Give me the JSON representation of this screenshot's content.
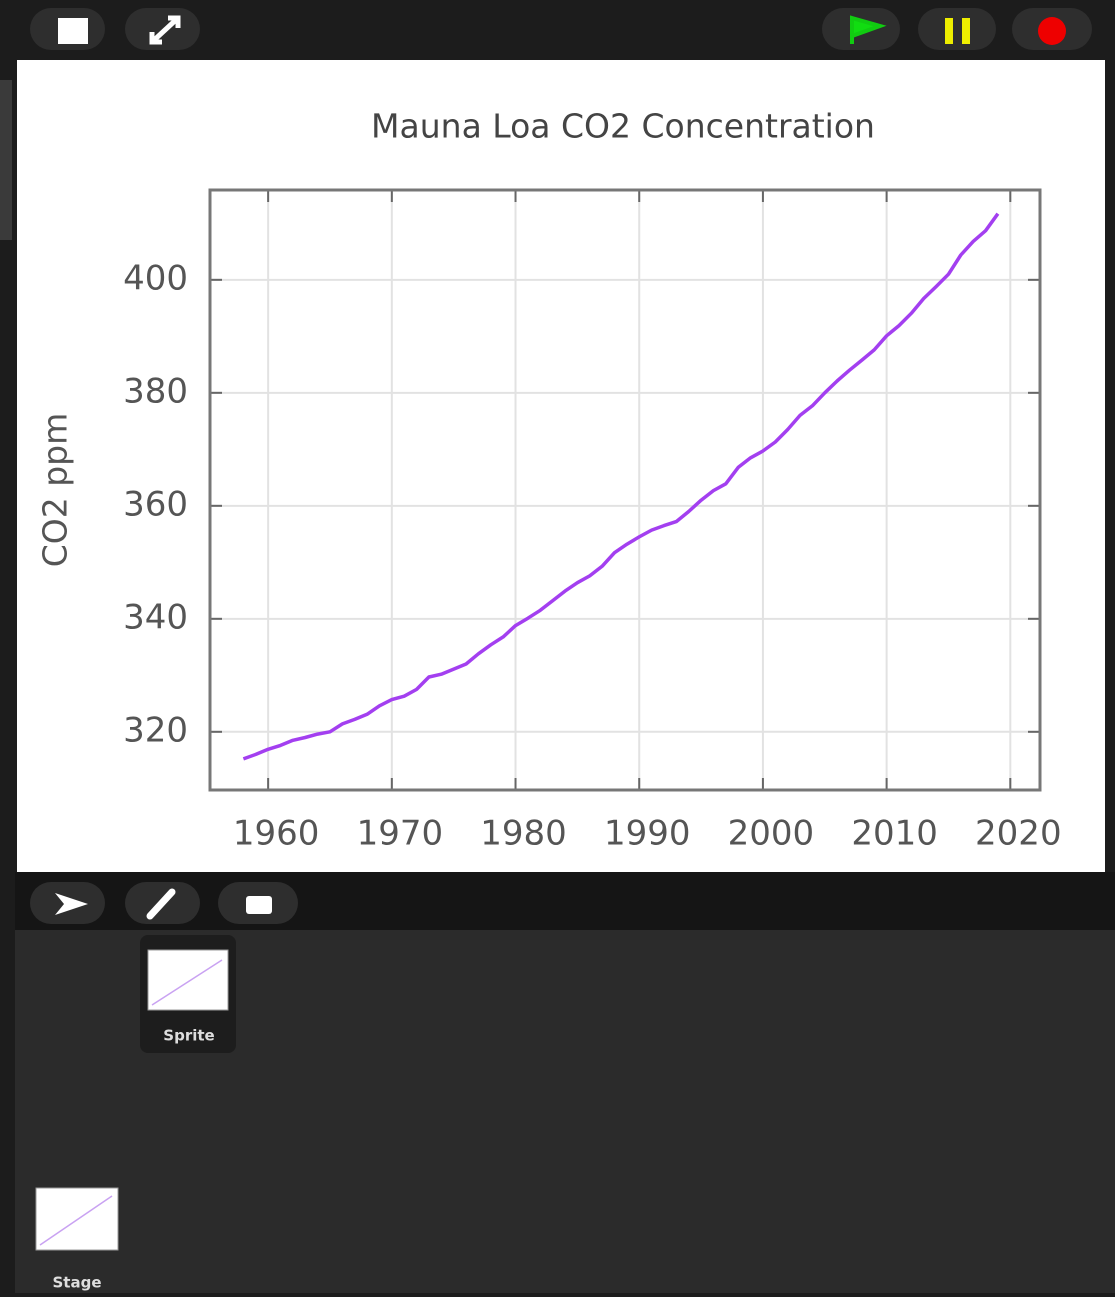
{
  "chart_data": {
    "type": "line",
    "title": "Mauna Loa CO2 Concentration",
    "y_label": "CO2 ppm",
    "x": [
      1958,
      1959,
      1960,
      1961,
      1962,
      1963,
      1964,
      1965,
      1966,
      1967,
      1968,
      1969,
      1970,
      1971,
      1972,
      1973,
      1974,
      1975,
      1976,
      1977,
      1978,
      1979,
      1980,
      1981,
      1982,
      1983,
      1984,
      1985,
      1986,
      1987,
      1988,
      1989,
      1990,
      1991,
      1992,
      1993,
      1994,
      1995,
      1996,
      1997,
      1998,
      1999,
      2000,
      2001,
      2002,
      2003,
      2004,
      2005,
      2006,
      2007,
      2008,
      2009,
      2010,
      2011,
      2012,
      2013,
      2014,
      2015,
      2016,
      2017,
      2018,
      2019
    ],
    "values": [
      315.2,
      316.0,
      316.9,
      317.6,
      318.5,
      319.0,
      319.6,
      320.0,
      321.4,
      322.2,
      323.1,
      324.6,
      325.7,
      326.3,
      327.5,
      329.7,
      330.2,
      331.1,
      332.0,
      333.8,
      335.4,
      336.8,
      338.8,
      340.1,
      341.5,
      343.2,
      344.9,
      346.4,
      347.6,
      349.3,
      351.7,
      353.2,
      354.5,
      355.7,
      356.5,
      357.2,
      359.0,
      361.0,
      362.7,
      363.9,
      366.8,
      368.5,
      369.7,
      371.3,
      373.5,
      376.0,
      377.7,
      380.0,
      382.1,
      384.0,
      385.8,
      387.6,
      390.1,
      391.9,
      394.1,
      396.7,
      398.8,
      401.0,
      404.4,
      406.8,
      408.7,
      411.7
    ],
    "color": "#a33ff0",
    "xlim": [
      1955.3,
      2022.4
    ],
    "xticks": [
      1960,
      1970,
      1980,
      1990,
      2000,
      2010,
      2020
    ],
    "ylim": [
      309.7,
      415.9
    ],
    "yticks": [
      320,
      340,
      360,
      380,
      400
    ],
    "grid": true
  },
  "ui": {
    "sprite_label": "Sprite",
    "stage_label": "Stage"
  }
}
